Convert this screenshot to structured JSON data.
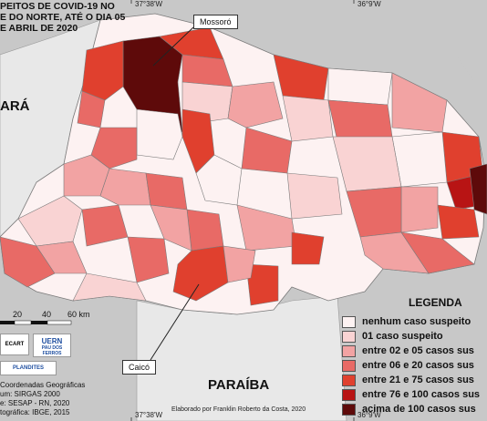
{
  "title_lines": [
    "PEITOS DE COVID-19 NO",
    "E DO NORTE, ATÉ O DIA 05",
    "E ABRIL DE 2020"
  ],
  "coords": {
    "top_left": "37°38'W",
    "top_right": "36°9'W",
    "bottom_left": "37°38'W",
    "bottom_right": "36°9'W"
  },
  "labels": {
    "ceara": "ARÁ",
    "paraiba": "PARAÍBA"
  },
  "callouts": {
    "mossoro": "Mossoró",
    "caico": "Caicó"
  },
  "scale": {
    "ticks": [
      "20",
      "40",
      "60 km"
    ]
  },
  "legend": {
    "title": "LEGENDA",
    "items": [
      {
        "label": "nenhum caso suspeito",
        "color": "#fdf2f2"
      },
      {
        "label": "01 caso suspeito",
        "color": "#f9d3d3"
      },
      {
        "label": "entre 02 e 05 casos sus",
        "color": "#f2a3a3"
      },
      {
        "label": "entre 06 e 20 casos sus",
        "color": "#e86a66"
      },
      {
        "label": "entre 21 e 75 casos sus",
        "color": "#e0402e"
      },
      {
        "label": "entre 76 e 100 casos sus",
        "color": "#b81414"
      },
      {
        "label": "acima de 100 casos sus",
        "color": "#5e0a0a"
      }
    ]
  },
  "logos": {
    "top_left": "ECART",
    "top_right": "UERN",
    "top_right_sub": "PAU DOS FERROS",
    "bottom": "PLANDITES"
  },
  "credits": [
    "Coordenadas Geográficas",
    "um: SIRGAS 2000",
    "e: SESAP - RN, 2020",
    "tográfica: IBGE, 2015"
  ],
  "footer": "Elaborado por Franklin Roberto da Costa, 2020",
  "colors": {
    "sea": "#c8c8c8",
    "land": "#e8e8e8",
    "boundary": "#7a7a7a"
  }
}
